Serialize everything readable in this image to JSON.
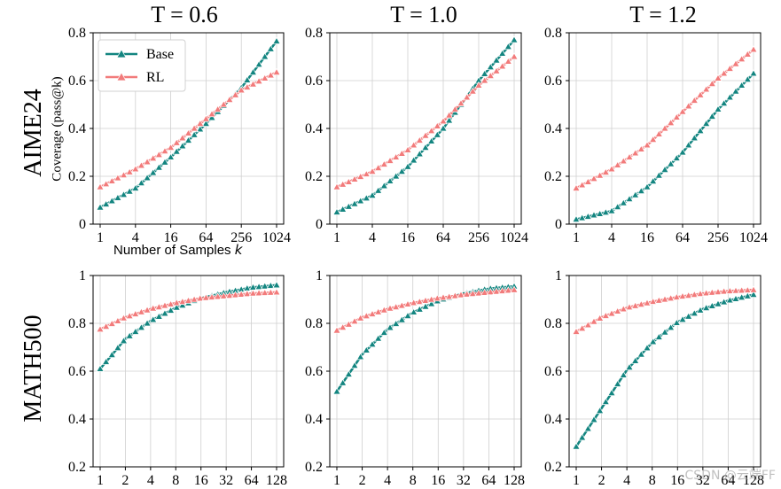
{
  "columns": [
    "T = 0.6",
    "T = 1.0",
    "T = 1.2"
  ],
  "rows": [
    "AIME24",
    "MATH500"
  ],
  "ylabel": "Coverage (pass@k)",
  "xlabel_text": "Number of Samples ",
  "xlabel_var": "k",
  "legend": {
    "base": "Base",
    "rl": "RL"
  },
  "watermark": "CSDN @云端FF",
  "colors": {
    "base": "#138580",
    "rl": "#f27b7b",
    "grid": "#cfcfcf"
  },
  "chart_data": [
    {
      "type": "line",
      "row": "AIME24",
      "column": "T = 0.6",
      "x_ticks": [
        "1",
        "4",
        "16",
        "64",
        "256",
        "1024"
      ],
      "x_scale": "log2",
      "x_range": [
        1,
        1024
      ],
      "ylim": [
        0,
        0.8
      ],
      "y_ticks": [
        "0",
        "0.2",
        "0.4",
        "0.6",
        "0.8"
      ],
      "grid": true,
      "legend_position": "top-left",
      "series": [
        {
          "name": "Base",
          "points": [
            [
              1,
              0.07
            ],
            [
              4,
              0.15
            ],
            [
              16,
              0.28
            ],
            [
              64,
              0.42
            ],
            [
              256,
              0.57
            ],
            [
              1024,
              0.765
            ]
          ]
        },
        {
          "name": "RL",
          "points": [
            [
              1,
              0.155
            ],
            [
              4,
              0.23
            ],
            [
              16,
              0.32
            ],
            [
              64,
              0.44
            ],
            [
              256,
              0.56
            ],
            [
              1024,
              0.635
            ]
          ]
        }
      ]
    },
    {
      "type": "line",
      "row": "AIME24",
      "column": "T = 1.0",
      "x_ticks": [
        "1",
        "4",
        "16",
        "64",
        "256",
        "1024"
      ],
      "x_scale": "log2",
      "x_range": [
        1,
        1024
      ],
      "ylim": [
        0,
        0.8
      ],
      "y_ticks": [
        "0",
        "0.2",
        "0.4",
        "0.6",
        "0.8"
      ],
      "grid": true,
      "series": [
        {
          "name": "Base",
          "points": [
            [
              1,
              0.05
            ],
            [
              4,
              0.12
            ],
            [
              16,
              0.24
            ],
            [
              64,
              0.4
            ],
            [
              256,
              0.6
            ],
            [
              1024,
              0.77
            ]
          ]
        },
        {
          "name": "RL",
          "points": [
            [
              1,
              0.155
            ],
            [
              4,
              0.22
            ],
            [
              16,
              0.31
            ],
            [
              64,
              0.43
            ],
            [
              256,
              0.58
            ],
            [
              1024,
              0.7
            ]
          ]
        }
      ]
    },
    {
      "type": "line",
      "row": "AIME24",
      "column": "T = 1.2",
      "x_ticks": [
        "1",
        "4",
        "16",
        "64",
        "256",
        "1024"
      ],
      "x_scale": "log2",
      "x_range": [
        1,
        1024
      ],
      "ylim": [
        0,
        0.8
      ],
      "y_ticks": [
        "0",
        "0.2",
        "0.4",
        "0.6",
        "0.8"
      ],
      "grid": true,
      "series": [
        {
          "name": "Base",
          "points": [
            [
              1,
              0.02
            ],
            [
              4,
              0.055
            ],
            [
              16,
              0.155
            ],
            [
              64,
              0.3
            ],
            [
              256,
              0.48
            ],
            [
              1024,
              0.63
            ]
          ]
        },
        {
          "name": "RL",
          "points": [
            [
              1,
              0.15
            ],
            [
              4,
              0.23
            ],
            [
              16,
              0.33
            ],
            [
              64,
              0.47
            ],
            [
              256,
              0.61
            ],
            [
              1024,
              0.73
            ]
          ]
        }
      ]
    },
    {
      "type": "line",
      "row": "MATH500",
      "column": "T = 0.6",
      "x_ticks": [
        "1",
        "2",
        "4",
        "8",
        "16",
        "32",
        "64",
        "128"
      ],
      "x_scale": "log2",
      "x_range": [
        1,
        128
      ],
      "ylim": [
        0.2,
        1.0
      ],
      "y_ticks": [
        "0.2",
        "0.4",
        "0.6",
        "0.8",
        "1"
      ],
      "grid": true,
      "series": [
        {
          "name": "Base",
          "points": [
            [
              1,
              0.61
            ],
            [
              2,
              0.735
            ],
            [
              4,
              0.81
            ],
            [
              8,
              0.865
            ],
            [
              16,
              0.905
            ],
            [
              32,
              0.93
            ],
            [
              64,
              0.95
            ],
            [
              128,
              0.96
            ]
          ]
        },
        {
          "name": "RL",
          "points": [
            [
              1,
              0.775
            ],
            [
              2,
              0.825
            ],
            [
              4,
              0.86
            ],
            [
              8,
              0.885
            ],
            [
              16,
              0.905
            ],
            [
              32,
              0.915
            ],
            [
              64,
              0.925
            ],
            [
              128,
              0.93
            ]
          ]
        }
      ]
    },
    {
      "type": "line",
      "row": "MATH500",
      "column": "T = 1.0",
      "x_ticks": [
        "1",
        "2",
        "4",
        "8",
        "16",
        "32",
        "64",
        "128"
      ],
      "x_scale": "log2",
      "x_range": [
        1,
        128
      ],
      "ylim": [
        0.2,
        1.0
      ],
      "y_ticks": [
        "0.2",
        "0.4",
        "0.6",
        "0.8",
        "1"
      ],
      "grid": true,
      "series": [
        {
          "name": "Base",
          "points": [
            [
              1,
              0.515
            ],
            [
              2,
              0.67
            ],
            [
              4,
              0.775
            ],
            [
              8,
              0.845
            ],
            [
              16,
              0.895
            ],
            [
              32,
              0.925
            ],
            [
              64,
              0.945
            ],
            [
              128,
              0.955
            ]
          ]
        },
        {
          "name": "RL",
          "points": [
            [
              1,
              0.77
            ],
            [
              2,
              0.825
            ],
            [
              4,
              0.86
            ],
            [
              8,
              0.885
            ],
            [
              16,
              0.905
            ],
            [
              32,
              0.92
            ],
            [
              64,
              0.93
            ],
            [
              128,
              0.94
            ]
          ]
        }
      ]
    },
    {
      "type": "line",
      "row": "MATH500",
      "column": "T = 1.2",
      "x_ticks": [
        "1",
        "2",
        "4",
        "8",
        "16",
        "32",
        "64",
        "128"
      ],
      "x_scale": "log2",
      "x_range": [
        1,
        128
      ],
      "ylim": [
        0.2,
        1.0
      ],
      "y_ticks": [
        "0.2",
        "0.4",
        "0.6",
        "0.8",
        "1"
      ],
      "grid": true,
      "series": [
        {
          "name": "Base",
          "points": [
            [
              1,
              0.285
            ],
            [
              2,
              0.445
            ],
            [
              4,
              0.605
            ],
            [
              8,
              0.72
            ],
            [
              16,
              0.805
            ],
            [
              32,
              0.86
            ],
            [
              64,
              0.895
            ],
            [
              128,
              0.92
            ]
          ]
        },
        {
          "name": "RL",
          "points": [
            [
              1,
              0.765
            ],
            [
              2,
              0.825
            ],
            [
              4,
              0.865
            ],
            [
              8,
              0.89
            ],
            [
              16,
              0.91
            ],
            [
              32,
              0.925
            ],
            [
              64,
              0.935
            ],
            [
              128,
              0.94
            ]
          ]
        }
      ]
    }
  ]
}
